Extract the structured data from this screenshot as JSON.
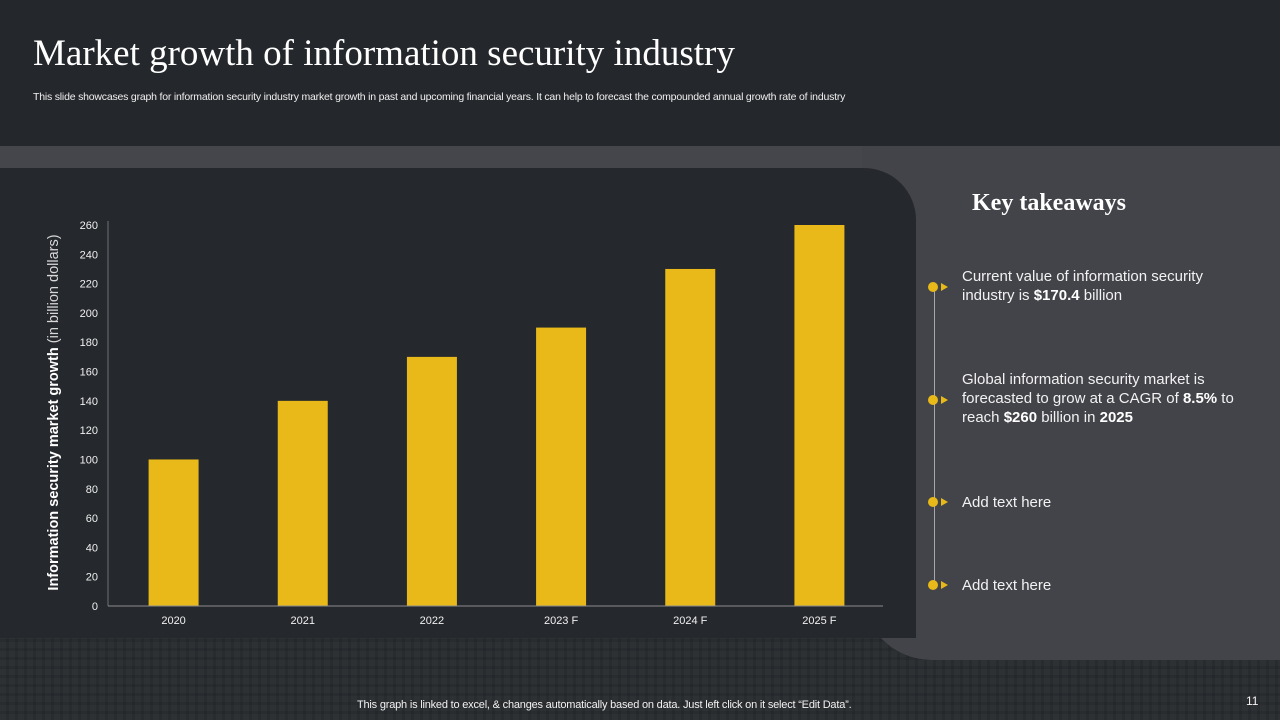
{
  "slide": {
    "title": "Market growth of information security industry",
    "subtitle": "This slide showcases graph for information security industry market growth in past and upcoming financial years. It can help to forecast the compounded annual growth rate of industry",
    "footer_note": "This graph is linked to excel, & changes automatically based on data. Just left click on it select “Edit Data”.",
    "page_number": "11"
  },
  "colors": {
    "bar": "#e8b918",
    "accent": "#e8b918",
    "background": "#24272b",
    "panel": "#434449"
  },
  "takeaways": {
    "title": "Key takeaways",
    "items": [
      {
        "parts": [
          [
            "Current value of information security industry is ",
            false
          ],
          [
            "$170.4",
            true
          ],
          [
            " billion",
            false
          ]
        ]
      },
      {
        "parts": [
          [
            "Global information security market is forecasted to grow at a CAGR of ",
            false
          ],
          [
            "8.5%",
            true
          ],
          [
            " to reach ",
            false
          ],
          [
            "$260",
            true
          ],
          [
            " billion in ",
            false
          ],
          [
            "2025",
            true
          ]
        ]
      },
      {
        "parts": [
          [
            "Add text here",
            false
          ]
        ]
      },
      {
        "parts": [
          [
            "Add text here",
            false
          ]
        ]
      }
    ]
  },
  "chart_data": {
    "type": "bar",
    "title": "",
    "categories": [
      "2020",
      "2021",
      "2022",
      "2023 F",
      "2024 F",
      "2025 F"
    ],
    "values": [
      100,
      140,
      170,
      190,
      230,
      260
    ],
    "xlabel": "",
    "ylabel_bold": "Information security market growth",
    "ylabel_light": " (in billion dollars)",
    "ylim": [
      0,
      260
    ],
    "yticks": [
      0,
      20,
      40,
      60,
      80,
      100,
      120,
      140,
      160,
      180,
      200,
      220,
      240,
      260
    ],
    "grid": false,
    "legend": "none"
  }
}
